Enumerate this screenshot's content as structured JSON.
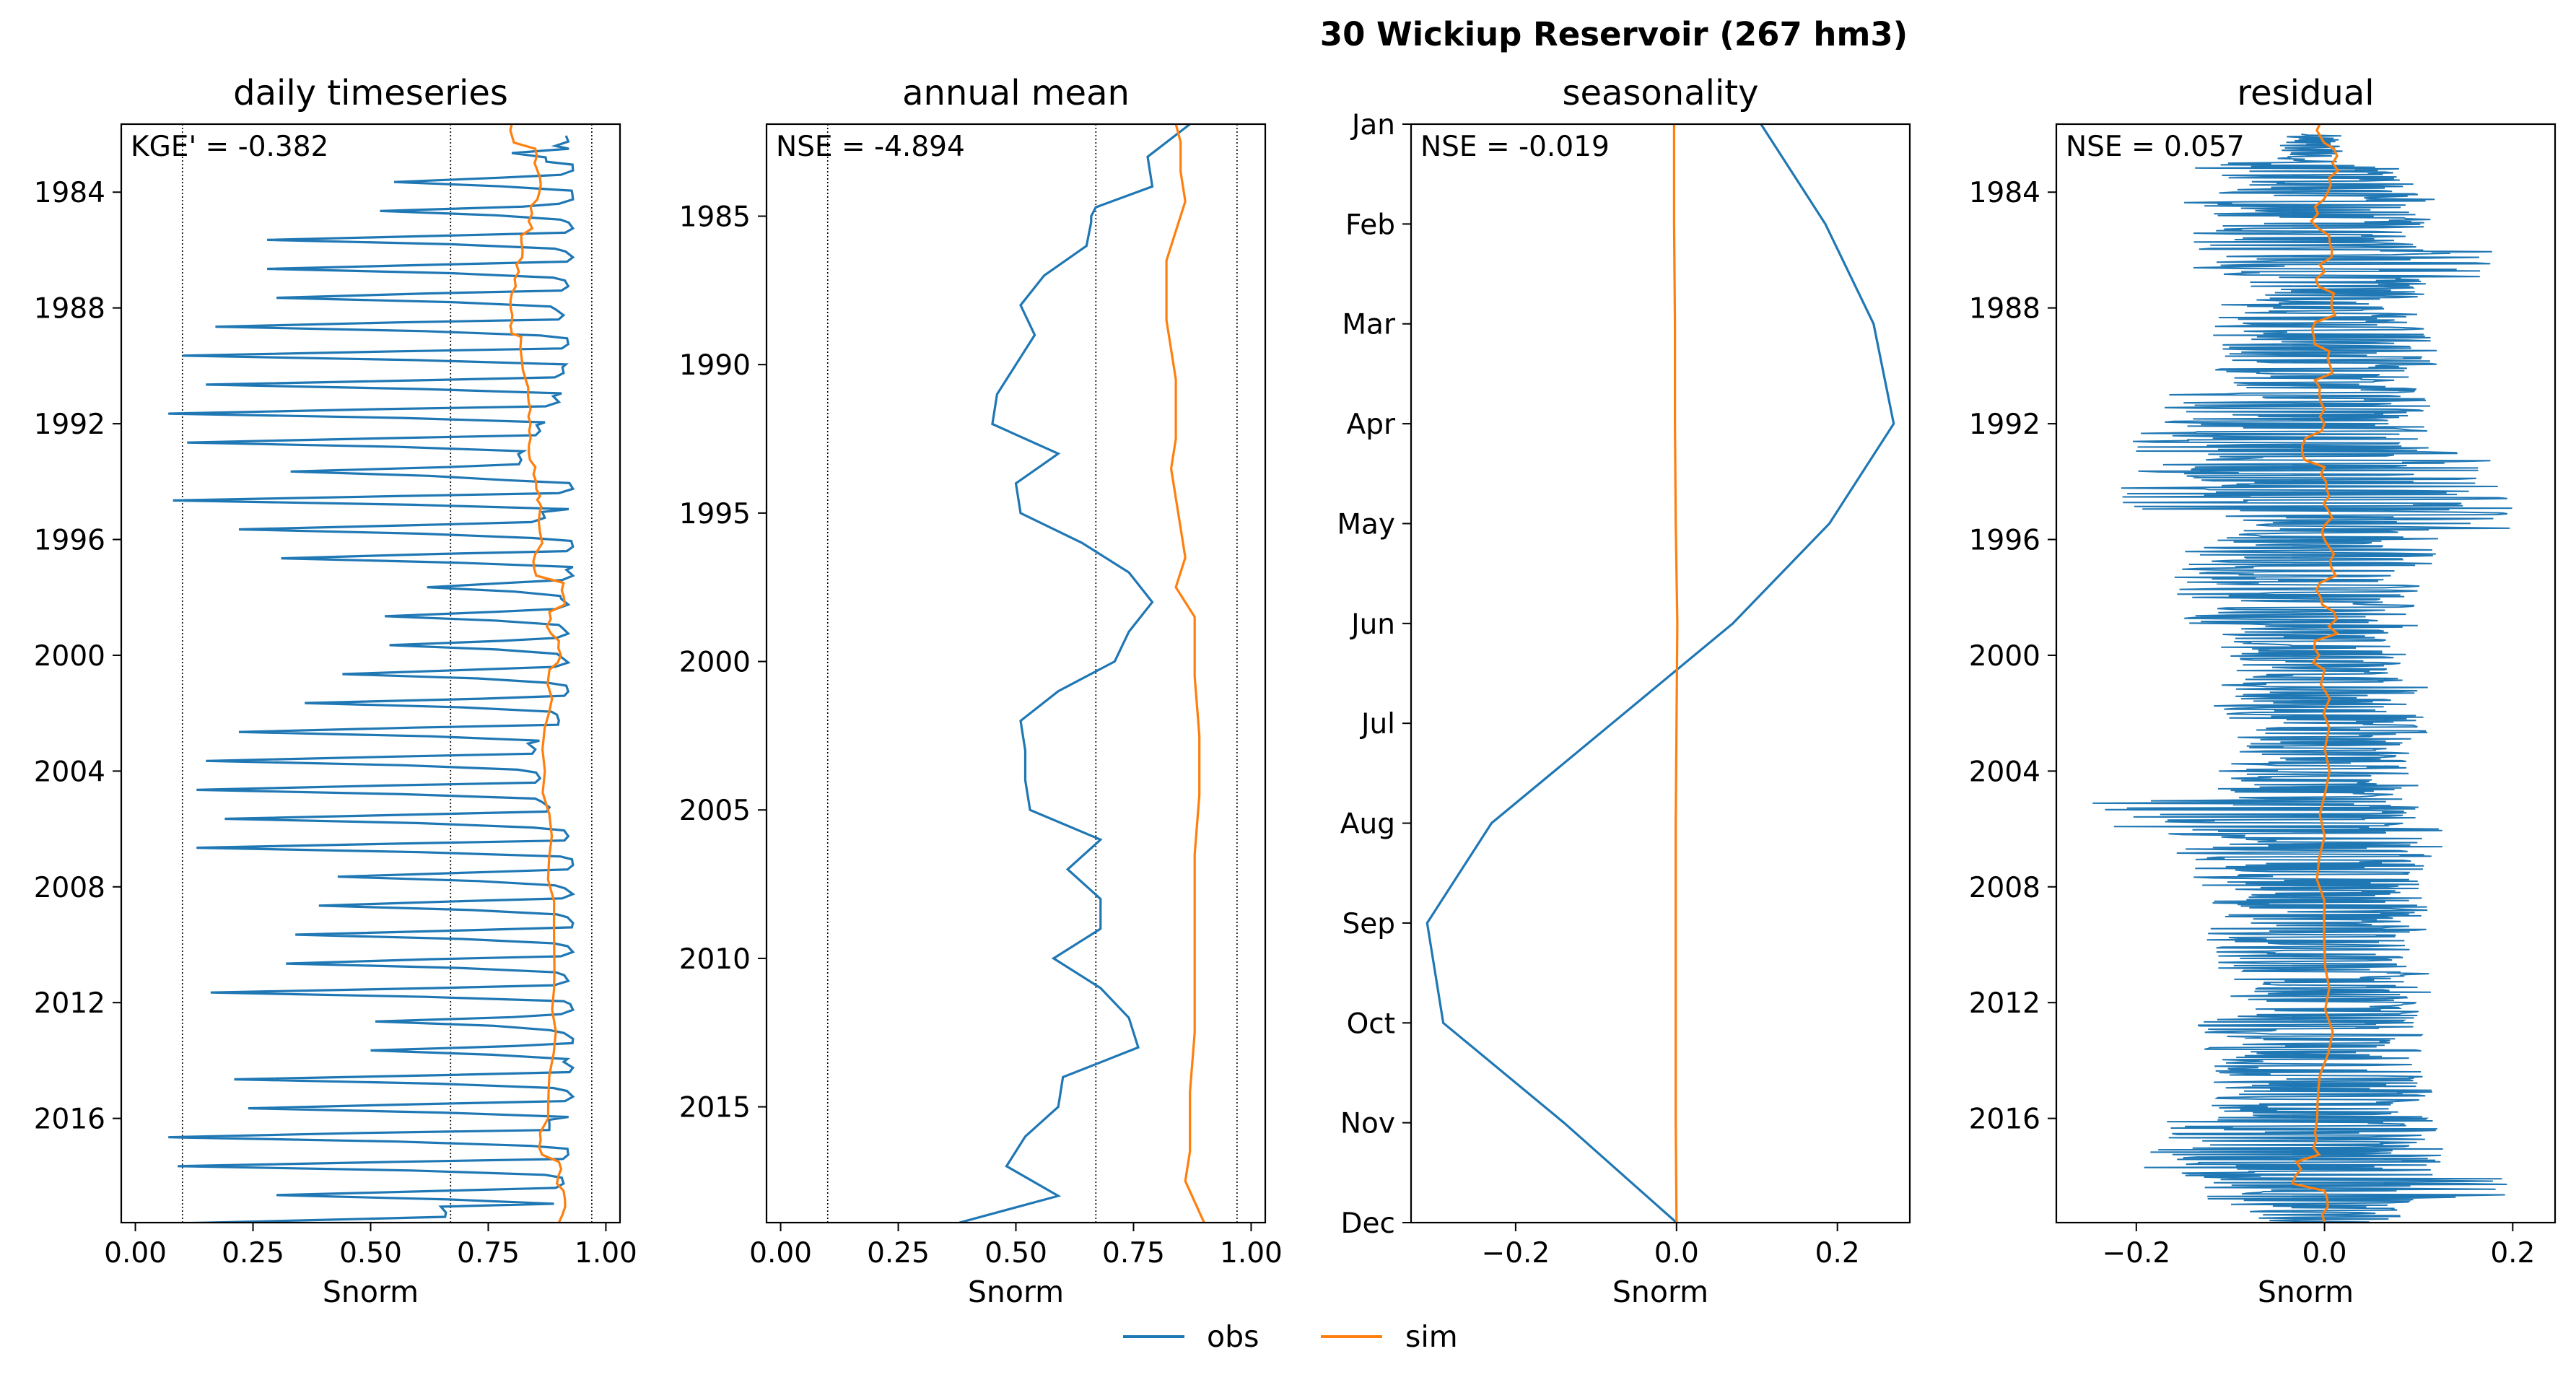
{
  "figure": {
    "suptitle": "30  Wickiup Reservoir (267 hm3)",
    "legend": {
      "placement": "bottom-center",
      "items": [
        {
          "label": "obs",
          "color": "#1f77b4"
        },
        {
          "label": "sim",
          "color": "#ff7f0e"
        }
      ]
    }
  },
  "colors": {
    "obs": "#1f77b4",
    "sim": "#ff7f0e",
    "refline": "#000000"
  },
  "chart_data": [
    {
      "type": "line",
      "title": "daily timeseries",
      "xlabel": "Snorm",
      "metric": "KGE' = -0.382",
      "xlim": [
        -0.03,
        1.03
      ],
      "ylim": [
        2019.6,
        1981.65
      ],
      "x_ticks": [
        0.0,
        0.25,
        0.5,
        0.75,
        1.0
      ],
      "x_tick_labels": [
        "0.00",
        "0.25",
        "0.50",
        "0.75",
        "1.00"
      ],
      "y_ticks": [
        1984,
        1988,
        1992,
        1996,
        2000,
        2004,
        2008,
        2012,
        2016
      ],
      "y_tick_labels": [
        "1984",
        "1988",
        "1992",
        "1996",
        "2000",
        "2004",
        "2008",
        "2012",
        "2016"
      ],
      "reference_lines_x": [
        0.1,
        0.67,
        0.97
      ],
      "annual_cycle_obs": {
        "years": [
          1982,
          1983,
          1984,
          1985,
          1986,
          1987,
          1988,
          1989,
          1990,
          1991,
          1992,
          1993,
          1994,
          1995,
          1996,
          1997,
          1998,
          1999,
          2000,
          2001,
          2002,
          2003,
          2004,
          2005,
          2006,
          2007,
          2008,
          2009,
          2010,
          2011,
          2012,
          2013,
          2014,
          2015,
          2016,
          2017,
          2018,
          2019
        ],
        "max": [
          0.92,
          0.93,
          0.93,
          0.93,
          0.93,
          0.92,
          0.91,
          0.92,
          0.91,
          0.9,
          0.86,
          0.82,
          0.93,
          0.87,
          0.93,
          0.93,
          0.92,
          0.92,
          0.92,
          0.92,
          0.9,
          0.85,
          0.86,
          0.88,
          0.92,
          0.93,
          0.93,
          0.93,
          0.93,
          0.92,
          0.93,
          0.93,
          0.93,
          0.93,
          0.88,
          0.92,
          0.91,
          0.66
        ],
        "min": [
          0.8,
          0.55,
          0.52,
          0.28,
          0.28,
          0.3,
          0.17,
          0.1,
          0.15,
          0.07,
          0.11,
          0.33,
          0.08,
          0.22,
          0.31,
          0.62,
          0.53,
          0.54,
          0.44,
          0.36,
          0.22,
          0.15,
          0.13,
          0.19,
          0.13,
          0.43,
          0.39,
          0.34,
          0.32,
          0.16,
          0.51,
          0.5,
          0.21,
          0.24,
          0.07,
          0.09,
          0.3,
          0.03
        ]
      },
      "sim_track": {
        "y": [
          1981.65,
          1982.5,
          1983.5,
          1984.5,
          1985.5,
          1986.5,
          1987.5,
          1988.5,
          1989.0,
          1990.5,
          1991.5,
          1992.5,
          1993.5,
          1994.5,
          1995.0,
          1996.5,
          1997.5,
          1998.5,
          1999.5,
          2000.5,
          2002.5,
          2005.5,
          2008.5,
          2011.5,
          2014.5,
          2016.5,
          2017.5,
          2018.5,
          2019.6
        ],
        "x": [
          0.8,
          0.85,
          0.86,
          0.84,
          0.82,
          0.81,
          0.8,
          0.8,
          0.82,
          0.83,
          0.84,
          0.84,
          0.85,
          0.86,
          0.86,
          0.85,
          0.91,
          0.88,
          0.9,
          0.88,
          0.87,
          0.88,
          0.89,
          0.89,
          0.88,
          0.86,
          0.9,
          0.91,
          0.9
        ]
      }
    },
    {
      "type": "line",
      "title": "annual mean",
      "xlabel": "Snorm",
      "metric": "NSE = -4.894",
      "xlim": [
        -0.03,
        1.03
      ],
      "ylim": [
        2018.9,
        1981.9
      ],
      "x_ticks": [
        0.0,
        0.25,
        0.5,
        0.75,
        1.0
      ],
      "x_tick_labels": [
        "0.00",
        "0.25",
        "0.50",
        "0.75",
        "1.00"
      ],
      "y_ticks": [
        1985,
        1990,
        1995,
        2000,
        2005,
        2010,
        2015
      ],
      "y_tick_labels": [
        "1985",
        "1990",
        "1995",
        "2000",
        "2005",
        "2010",
        "2015"
      ],
      "reference_lines_x": [
        0.1,
        0.67,
        0.97
      ],
      "series": [
        {
          "name": "obs",
          "color": "#1f77b4",
          "y": [
            1981.9,
            1983,
            1984,
            1984.7,
            1985,
            1985.2,
            1986,
            1987,
            1988,
            1989,
            1990,
            1991,
            1992,
            1993,
            1994,
            1995,
            1996,
            1997,
            1998,
            1999,
            2000,
            2001,
            2002,
            2003,
            2004,
            2005,
            2006,
            2007,
            2008,
            2009,
            2010,
            2011,
            2012,
            2013,
            2014,
            2015,
            2016,
            2017,
            2018,
            2018.9
          ],
          "x": [
            0.87,
            0.78,
            0.79,
            0.67,
            0.66,
            0.66,
            0.65,
            0.56,
            0.51,
            0.54,
            0.5,
            0.46,
            0.45,
            0.59,
            0.5,
            0.51,
            0.64,
            0.74,
            0.79,
            0.74,
            0.71,
            0.59,
            0.51,
            0.52,
            0.52,
            0.53,
            0.68,
            0.61,
            0.68,
            0.68,
            0.58,
            0.68,
            0.74,
            0.76,
            0.6,
            0.59,
            0.52,
            0.48,
            0.59,
            0.38
          ]
        },
        {
          "name": "sim",
          "color": "#ff7f0e",
          "y": [
            1981.9,
            1982.5,
            1983.5,
            1984.5,
            1985.5,
            1986.5,
            1987.5,
            1988.5,
            1989.5,
            1990.5,
            1991.5,
            1992.5,
            1993.5,
            1994.5,
            1995.5,
            1996.5,
            1997.5,
            1998.5,
            1999.5,
            2000.5,
            2002.5,
            2004.5,
            2006.5,
            2008.5,
            2010.5,
            2012.5,
            2014.5,
            2016.5,
            2017.5,
            2018.9
          ],
          "x": [
            0.84,
            0.85,
            0.85,
            0.86,
            0.84,
            0.82,
            0.82,
            0.82,
            0.83,
            0.84,
            0.84,
            0.84,
            0.83,
            0.84,
            0.85,
            0.86,
            0.84,
            0.88,
            0.88,
            0.88,
            0.89,
            0.89,
            0.88,
            0.88,
            0.88,
            0.88,
            0.87,
            0.87,
            0.86,
            0.9
          ]
        }
      ]
    },
    {
      "type": "line",
      "title": "seasonality",
      "xlabel": "Snorm",
      "metric": "NSE = -0.019",
      "xlim": [
        -0.33,
        0.29
      ],
      "ylim": [
        12,
        1
      ],
      "x_ticks": [
        -0.2,
        0.0,
        0.2
      ],
      "x_tick_labels": [
        "−0.2",
        "0.0",
        "0.2"
      ],
      "y_ticks": [
        1,
        2,
        3,
        4,
        5,
        6,
        7,
        8,
        9,
        10,
        11,
        12
      ],
      "y_tick_labels": [
        "Jan",
        "Feb",
        "Mar",
        "Apr",
        "May",
        "Jun",
        "Jul",
        "Aug",
        "Sep",
        "Oct",
        "Nov",
        "Dec"
      ],
      "series": [
        {
          "name": "obs",
          "color": "#1f77b4",
          "y": [
            1,
            2,
            3,
            4,
            5,
            6,
            7,
            8,
            9,
            10,
            11,
            12
          ],
          "x": [
            0.105,
            0.185,
            0.245,
            0.27,
            0.19,
            0.07,
            -0.08,
            -0.23,
            -0.31,
            -0.29,
            -0.14,
            0.0
          ]
        },
        {
          "name": "sim",
          "color": "#ff7f0e",
          "y": [
            1,
            2,
            3,
            4,
            5,
            6,
            7,
            8,
            9,
            10,
            11,
            12
          ],
          "x": [
            -0.003,
            -0.003,
            -0.002,
            -0.002,
            -0.001,
            0.001,
            0.0,
            -0.001,
            -0.001,
            -0.001,
            -0.001,
            0.0
          ]
        }
      ]
    },
    {
      "type": "line",
      "title": "residual",
      "xlabel": "Snorm",
      "metric": "NSE = 0.057",
      "xlim": [
        -0.285,
        0.245
      ],
      "ylim": [
        2019.6,
        1981.65
      ],
      "x_ticks": [
        -0.2,
        0.0,
        0.2
      ],
      "x_tick_labels": [
        "−0.2",
        "0.0",
        "0.2"
      ],
      "y_ticks": [
        1984,
        1988,
        1992,
        1996,
        2000,
        2004,
        2008,
        2012,
        2016
      ],
      "y_tick_labels": [
        "1984",
        "1988",
        "1992",
        "1996",
        "2000",
        "2004",
        "2008",
        "2012",
        "2016"
      ],
      "obs_envelope": {
        "years": [
          1982,
          1983,
          1984,
          1985,
          1986,
          1987,
          1988,
          1989,
          1990,
          1991,
          1992,
          1993,
          1994,
          1995,
          1996,
          1997,
          1998,
          1999,
          2000,
          2001,
          2002,
          2003,
          2004,
          2005,
          2006,
          2007,
          2008,
          2009,
          2010,
          2011,
          2012,
          2013,
          2014,
          2015,
          2016,
          2017,
          2018,
          2019
        ],
        "min": [
          -0.05,
          -0.14,
          -0.15,
          -0.14,
          -0.14,
          -0.11,
          -0.12,
          -0.11,
          -0.12,
          -0.18,
          -0.22,
          -0.2,
          -0.23,
          -0.11,
          -0.16,
          -0.16,
          -0.15,
          -0.11,
          -0.1,
          -0.12,
          -0.11,
          -0.1,
          -0.12,
          -0.27,
          -0.17,
          -0.14,
          -0.12,
          -0.13,
          -0.12,
          -0.11,
          -0.14,
          -0.13,
          -0.12,
          -0.13,
          -0.17,
          -0.2,
          -0.13,
          -0.08
        ],
        "max": [
          0.02,
          0.1,
          0.12,
          0.11,
          0.18,
          0.11,
          0.11,
          0.12,
          0.1,
          0.12,
          0.12,
          0.18,
          0.2,
          0.2,
          0.12,
          0.11,
          0.1,
          0.09,
          0.09,
          0.11,
          0.11,
          0.09,
          0.1,
          0.1,
          0.13,
          0.11,
          0.11,
          0.11,
          0.1,
          0.12,
          0.1,
          0.11,
          0.12,
          0.12,
          0.12,
          0.13,
          0.21,
          0.08
        ]
      },
      "sim_track": {
        "y": [
          1981.65,
          1982.5,
          1983.5,
          1984.5,
          1985.5,
          1986.5,
          1987.5,
          1988.5,
          1989.5,
          1990.5,
          1991.5,
          1992.5,
          1993.5,
          1994.5,
          1995.5,
          1996.5,
          1997.5,
          1998.5,
          1999.5,
          2000.5,
          2002.5,
          2005.5,
          2008.5,
          2011.5,
          2014.5,
          2016.5,
          2017.5,
          2018.5,
          2019.6
        ],
        "x": [
          -0.005,
          0.01,
          0.005,
          -0.01,
          0.005,
          -0.005,
          0.01,
          -0.01,
          0.005,
          -0.01,
          0.0,
          -0.02,
          0.0,
          0.005,
          0.0,
          0.01,
          -0.005,
          0.01,
          -0.01,
          0.0,
          0.005,
          -0.005,
          0.0,
          0.005,
          -0.005,
          -0.01,
          -0.03,
          0.0,
          0.0
        ]
      }
    }
  ]
}
